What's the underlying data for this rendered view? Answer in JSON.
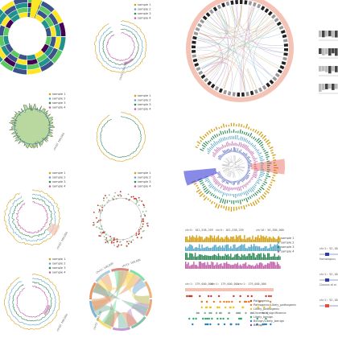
{
  "page": {
    "background": "#ffffff",
    "panel_count": 18
  },
  "palette": {
    "sample": [
      "#d4a017",
      "#5aa9c9",
      "#2e8b57",
      "#c062a8"
    ],
    "heat": [
      "#440154",
      "#3b528b",
      "#21918c",
      "#5ec962",
      "#fde725"
    ],
    "accent_red": "#e74c3c",
    "accent_blue": "#3a3ad8",
    "pink_band": "#f4c3b6"
  },
  "legend": {
    "labels": [
      "sample 1",
      "sample 2",
      "sample 3",
      "sample 4"
    ]
  },
  "genome_labels": {
    "panel_a": [
      "chr10: 100,000",
      "chr11: 100,000"
    ],
    "panel_b": [
      "chr10: 100,000"
    ],
    "panel_c": [
      "chr10: 100,000"
    ],
    "panel_d": [
      "chr10: 100,000"
    ],
    "panel_e": [
      "chr11: 100,000",
      "chr11: 100,000",
      "chr12: 100,000"
    ]
  },
  "track_headers": {
    "top": [
      "chr5: 181,538,259",
      "chr5: 181,538,259",
      "chr16: 56,386,000"
    ],
    "bottom": [
      "chr1: 179,000,000",
      "chr1: 179,000,000",
      "chr1: 179,000,000"
    ]
  },
  "right_coords": [
    "chr1: 92,186,000",
    "chr1: 92,180,000",
    "chr1: 92,180,000"
  ],
  "variant_legend": [
    "Pathogenic",
    "Pathogenic/Likely_pathogenic",
    "Likely_pathogenic",
    "Uncertain_significance",
    "Likely_benign",
    "Benign/Likely_benign",
    "Benign"
  ],
  "right_labels": [
    "Homologous",
    "Clonous et al."
  ],
  "chart_data": [
    {
      "type": "heatmap",
      "description_label": "",
      "rings": 4,
      "segments": 16,
      "values": [
        [
          0.2,
          0.8,
          0.5,
          0.3,
          0.6,
          0.1,
          0.9,
          0.4,
          0.3,
          0.7,
          0.2,
          0.5,
          0.6,
          0.1,
          0.4,
          0.8
        ],
        [
          0.5,
          0.3,
          0.7,
          0.9,
          0.2,
          0.4,
          0.6,
          0.1,
          0.8,
          0.3,
          0.5,
          0.7,
          0.2,
          0.9,
          0.4,
          0.6
        ],
        [
          0.1,
          0.6,
          0.3,
          0.5,
          0.8,
          0.2,
          0.4,
          0.7,
          0.5,
          0.1,
          0.9,
          0.3,
          0.6,
          0.4,
          0.2,
          0.5
        ],
        [
          0.7,
          0.2,
          0.9,
          0.1,
          0.4,
          0.6,
          0.3,
          0.8,
          0.2,
          0.6,
          0.4,
          0.1,
          0.7,
          0.5,
          0.9,
          0.3
        ]
      ]
    },
    {
      "type": "line",
      "series": [
        {
          "name": "sample 1",
          "values": [
            0.5,
            0.6,
            0.4,
            0.7,
            0.5,
            0.6,
            0.5,
            0.4,
            0.6,
            0.5,
            0.7,
            0.5
          ]
        },
        {
          "name": "sample 2",
          "values": [
            0.4,
            0.5,
            0.6,
            0.4,
            0.5,
            0.4,
            0.6,
            0.5,
            0.4,
            0.6,
            0.5,
            0.4
          ]
        },
        {
          "name": "sample 3",
          "values": [
            0.6,
            0.4,
            0.5,
            0.6,
            0.4,
            0.5,
            0.4,
            0.6,
            0.5,
            0.4,
            0.5,
            0.6
          ]
        },
        {
          "name": "sample 4",
          "values": [
            0.5,
            0.5,
            0.5,
            0.5,
            0.6,
            0.5,
            0.5,
            0.5,
            0.5,
            0.5,
            0.4,
            0.5
          ]
        }
      ]
    }
  ]
}
